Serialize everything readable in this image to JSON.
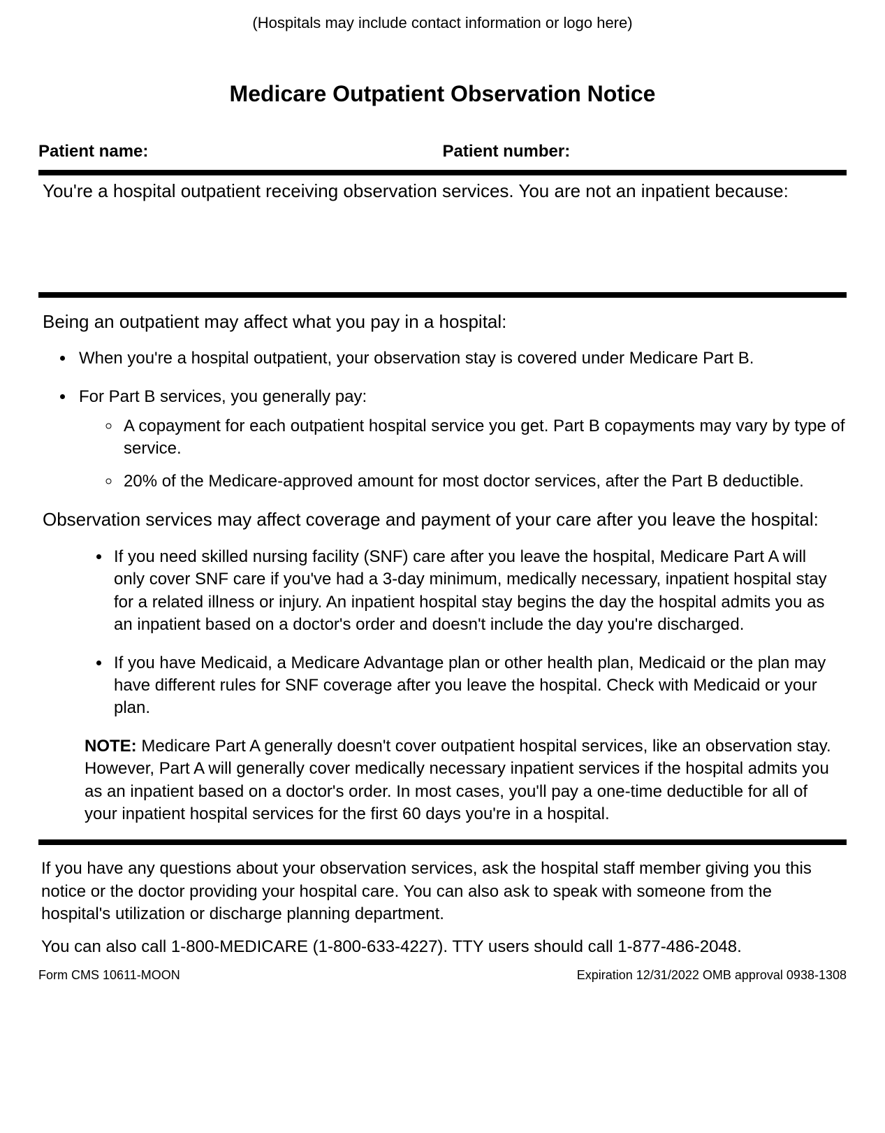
{
  "header_note": "(Hospitals may include contact information or logo here)",
  "title": "Medicare Outpatient Observation Notice",
  "patient": {
    "name_label": "Patient name:",
    "number_label": "Patient number:"
  },
  "intro_text": "You're a hospital outpatient receiving observation services. You are not an inpatient because:",
  "section1": {
    "heading": "Being an outpatient may affect what you pay in a hospital:",
    "bullets": {
      "b1": "When you're a hospital outpatient, your observation stay is covered under Medicare Part B.",
      "b2_lead": "For Part B services, you generally pay:",
      "b2_sub1": "A copayment for each outpatient hospital service you get. Part B copayments may vary by type of service.",
      "b2_sub2": "20% of the Medicare-approved amount for most doctor services, after the Part B deductible."
    }
  },
  "section2": {
    "heading": "Observation services may affect coverage and payment of your care after you leave the hospital:",
    "bullets": {
      "b1": "If you need skilled nursing facility (SNF) care after you leave the hospital, Medicare Part A will only cover SNF care if you've had a 3-day minimum, medically necessary, inpatient hospital stay for a related illness or injury. An inpatient hospital stay begins the day the hospital admits you as an inpatient based on a doctor's order and doesn't include the day you're discharged.",
      "b2": "If you have Medicaid, a Medicare Advantage plan or other health plan, Medicaid or the plan may have different rules for SNF coverage after you leave the hospital. Check with Medicaid or your plan."
    },
    "note_label": "NOTE:",
    "note_text": " Medicare Part A generally doesn't cover outpatient hospital services, like an observation stay. However, Part A will generally cover medically necessary inpatient services if the hospital admits you as an inpatient based on a doctor's order. In most cases, you'll pay a one-time deductible for all of your inpatient hospital services for the first 60 days you're in a hospital."
  },
  "closing": {
    "p1": "If you have any questions about your observation services, ask the hospital staff member giving you this notice or the doctor providing your hospital care. You can also ask to speak with someone from the hospital's utilization or discharge planning department.",
    "p2": "You can also call 1-800-MEDICARE (1-800-633-4227).  TTY users should call 1-877-486-2048."
  },
  "footer": {
    "form_id": "Form CMS 10611-MOON",
    "expiration": "Expiration 12/31/2022 OMB approval 0938-1308"
  }
}
